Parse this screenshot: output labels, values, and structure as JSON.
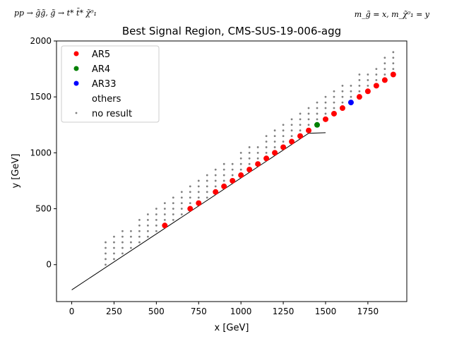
{
  "chart_data": {
    "type": "scatter",
    "title": "Best Signal Region, CMS-SUS-19-006-agg",
    "corner_left": "pp → g̃g̃, g̃ → t* t̄* χ̃⁰₁",
    "corner_right": "m_g̃ = x, m_χ̃⁰₁ = y",
    "xlabel": "x [GeV]",
    "ylabel": "y [GeV]",
    "xlim": [
      -90,
      1980
    ],
    "ylim": [
      -330,
      2000
    ],
    "xticks": [
      0,
      250,
      500,
      750,
      1000,
      1250,
      1500,
      1750
    ],
    "yticks": [
      0,
      500,
      1000,
      1500,
      2000
    ],
    "grid": false,
    "legend_position": "top-left",
    "colors": {
      "AR5": "#ff0000",
      "AR4": "#008000",
      "AR33": "#0000ff",
      "no_result": "#808080",
      "line": "#000000"
    },
    "series": [
      {
        "name": "AR5",
        "marker": "circle",
        "points": [
          [
            550,
            350
          ],
          [
            700,
            500
          ],
          [
            750,
            550
          ],
          [
            850,
            650
          ],
          [
            900,
            700
          ],
          [
            950,
            750
          ],
          [
            1000,
            800
          ],
          [
            1050,
            850
          ],
          [
            1100,
            900
          ],
          [
            1150,
            950
          ],
          [
            1200,
            1000
          ],
          [
            1250,
            1050
          ],
          [
            1300,
            1100
          ],
          [
            1350,
            1150
          ],
          [
            1400,
            1200
          ],
          [
            1500,
            1300
          ],
          [
            1550,
            1350
          ],
          [
            1600,
            1400
          ],
          [
            1700,
            1500
          ],
          [
            1750,
            1550
          ],
          [
            1800,
            1600
          ],
          [
            1850,
            1650
          ],
          [
            1900,
            1700
          ]
        ]
      },
      {
        "name": "AR4",
        "marker": "circle",
        "points": [
          [
            1450,
            1250
          ]
        ]
      },
      {
        "name": "AR33",
        "marker": "circle",
        "points": [
          [
            1650,
            1450
          ]
        ]
      },
      {
        "name": "others",
        "marker": "none",
        "points": []
      },
      {
        "name": "no result",
        "marker": "dot",
        "points": [
          [
            200,
            0
          ],
          [
            200,
            50
          ],
          [
            200,
            100
          ],
          [
            200,
            150
          ],
          [
            200,
            200
          ],
          [
            250,
            50
          ],
          [
            250,
            100
          ],
          [
            250,
            150
          ],
          [
            250,
            200
          ],
          [
            250,
            250
          ],
          [
            300,
            100
          ],
          [
            300,
            150
          ],
          [
            300,
            200
          ],
          [
            300,
            250
          ],
          [
            300,
            300
          ],
          [
            350,
            150
          ],
          [
            350,
            200
          ],
          [
            350,
            250
          ],
          [
            350,
            300
          ],
          [
            400,
            200
          ],
          [
            400,
            250
          ],
          [
            400,
            300
          ],
          [
            400,
            350
          ],
          [
            400,
            400
          ],
          [
            450,
            250
          ],
          [
            450,
            300
          ],
          [
            450,
            350
          ],
          [
            450,
            400
          ],
          [
            450,
            450
          ],
          [
            500,
            300
          ],
          [
            500,
            350
          ],
          [
            500,
            400
          ],
          [
            500,
            450
          ],
          [
            500,
            500
          ],
          [
            550,
            400
          ],
          [
            550,
            450
          ],
          [
            550,
            500
          ],
          [
            550,
            550
          ],
          [
            600,
            400
          ],
          [
            600,
            450
          ],
          [
            600,
            500
          ],
          [
            600,
            550
          ],
          [
            600,
            600
          ],
          [
            650,
            450
          ],
          [
            650,
            500
          ],
          [
            650,
            550
          ],
          [
            650,
            600
          ],
          [
            650,
            650
          ],
          [
            700,
            550
          ],
          [
            700,
            600
          ],
          [
            700,
            650
          ],
          [
            700,
            700
          ],
          [
            750,
            600
          ],
          [
            750,
            650
          ],
          [
            750,
            700
          ],
          [
            750,
            750
          ],
          [
            800,
            600
          ],
          [
            800,
            650
          ],
          [
            800,
            700
          ],
          [
            800,
            750
          ],
          [
            800,
            800
          ],
          [
            850,
            700
          ],
          [
            850,
            750
          ],
          [
            850,
            800
          ],
          [
            850,
            850
          ],
          [
            900,
            750
          ],
          [
            900,
            800
          ],
          [
            900,
            850
          ],
          [
            900,
            900
          ],
          [
            950,
            800
          ],
          [
            950,
            850
          ],
          [
            950,
            900
          ],
          [
            1000,
            850
          ],
          [
            1000,
            900
          ],
          [
            1000,
            950
          ],
          [
            1000,
            1000
          ],
          [
            1050,
            900
          ],
          [
            1050,
            950
          ],
          [
            1050,
            1000
          ],
          [
            1050,
            1050
          ],
          [
            1100,
            950
          ],
          [
            1100,
            1000
          ],
          [
            1100,
            1050
          ],
          [
            1150,
            1000
          ],
          [
            1150,
            1050
          ],
          [
            1150,
            1100
          ],
          [
            1150,
            1150
          ],
          [
            1200,
            1050
          ],
          [
            1200,
            1100
          ],
          [
            1200,
            1150
          ],
          [
            1200,
            1200
          ],
          [
            1250,
            1100
          ],
          [
            1250,
            1150
          ],
          [
            1250,
            1200
          ],
          [
            1250,
            1250
          ],
          [
            1300,
            1150
          ],
          [
            1300,
            1200
          ],
          [
            1300,
            1250
          ],
          [
            1300,
            1300
          ],
          [
            1350,
            1200
          ],
          [
            1350,
            1250
          ],
          [
            1350,
            1300
          ],
          [
            1350,
            1350
          ],
          [
            1400,
            1250
          ],
          [
            1400,
            1300
          ],
          [
            1400,
            1350
          ],
          [
            1400,
            1400
          ],
          [
            1450,
            1300
          ],
          [
            1450,
            1350
          ],
          [
            1450,
            1400
          ],
          [
            1450,
            1450
          ],
          [
            1500,
            1350
          ],
          [
            1500,
            1400
          ],
          [
            1500,
            1450
          ],
          [
            1500,
            1500
          ],
          [
            1550,
            1400
          ],
          [
            1550,
            1450
          ],
          [
            1550,
            1500
          ],
          [
            1550,
            1550
          ],
          [
            1600,
            1450
          ],
          [
            1600,
            1500
          ],
          [
            1600,
            1550
          ],
          [
            1600,
            1600
          ],
          [
            1650,
            1500
          ],
          [
            1650,
            1550
          ],
          [
            1650,
            1600
          ],
          [
            1700,
            1550
          ],
          [
            1700,
            1600
          ],
          [
            1700,
            1650
          ],
          [
            1700,
            1700
          ],
          [
            1750,
            1600
          ],
          [
            1750,
            1650
          ],
          [
            1750,
            1700
          ],
          [
            1800,
            1650
          ],
          [
            1800,
            1700
          ],
          [
            1800,
            1750
          ],
          [
            1850,
            1700
          ],
          [
            1850,
            1750
          ],
          [
            1850,
            1800
          ],
          [
            1850,
            1850
          ],
          [
            1900,
            1750
          ],
          [
            1900,
            1800
          ],
          [
            1900,
            1850
          ],
          [
            1900,
            1900
          ]
        ]
      }
    ],
    "boundary_line": [
      [
        0,
        -225
      ],
      [
        1400,
        1175
      ],
      [
        1500,
        1180
      ]
    ]
  }
}
